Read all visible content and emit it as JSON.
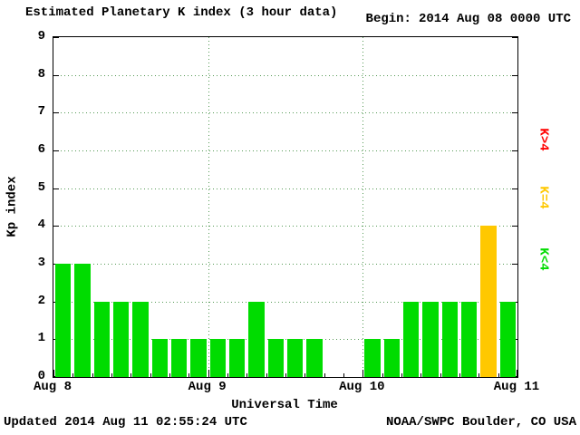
{
  "page": {
    "title": "Estimated Planetary K index (3 hour data)",
    "begin_label": "Begin:",
    "begin_value": "2014 Aug 08 0000 UTC",
    "updated": "Updated 2014 Aug 11 02:55:24 UTC",
    "source": "NOAA/SWPC Boulder, CO USA"
  },
  "chart_data": {
    "type": "bar",
    "title": "Estimated Planetary K index (3 hour data)",
    "xlabel": "Universal Time",
    "ylabel": "Kp index",
    "ylim": [
      0,
      9
    ],
    "y_ticks": [
      0,
      1,
      2,
      3,
      4,
      5,
      6,
      7,
      8,
      9
    ],
    "x_ticks": [
      {
        "label": "Aug 8",
        "day": 0
      },
      {
        "label": "Aug 9",
        "day": 1
      },
      {
        "label": "Aug 10",
        "day": 2
      },
      {
        "label": "Aug 11",
        "day": 3
      }
    ],
    "slots_per_day": 8,
    "hours_per_slot": 3,
    "values": [
      3,
      3,
      2,
      2,
      2,
      1,
      1,
      1,
      1,
      1,
      2,
      1,
      1,
      1,
      0,
      0,
      1,
      1,
      2,
      2,
      2,
      2,
      4,
      2
    ],
    "colors": {
      "k_lt_4": "#00dc00",
      "k_eq_4": "#ffc800",
      "k_gt_4": "#ff0000",
      "grid": "#559955"
    },
    "legend": [
      {
        "label": "K>4",
        "color": "#ff0000"
      },
      {
        "label": "K=4",
        "color": "#ffc800"
      },
      {
        "label": "K<4",
        "color": "#00dc00"
      }
    ],
    "grid": true,
    "legend_position": "right"
  }
}
